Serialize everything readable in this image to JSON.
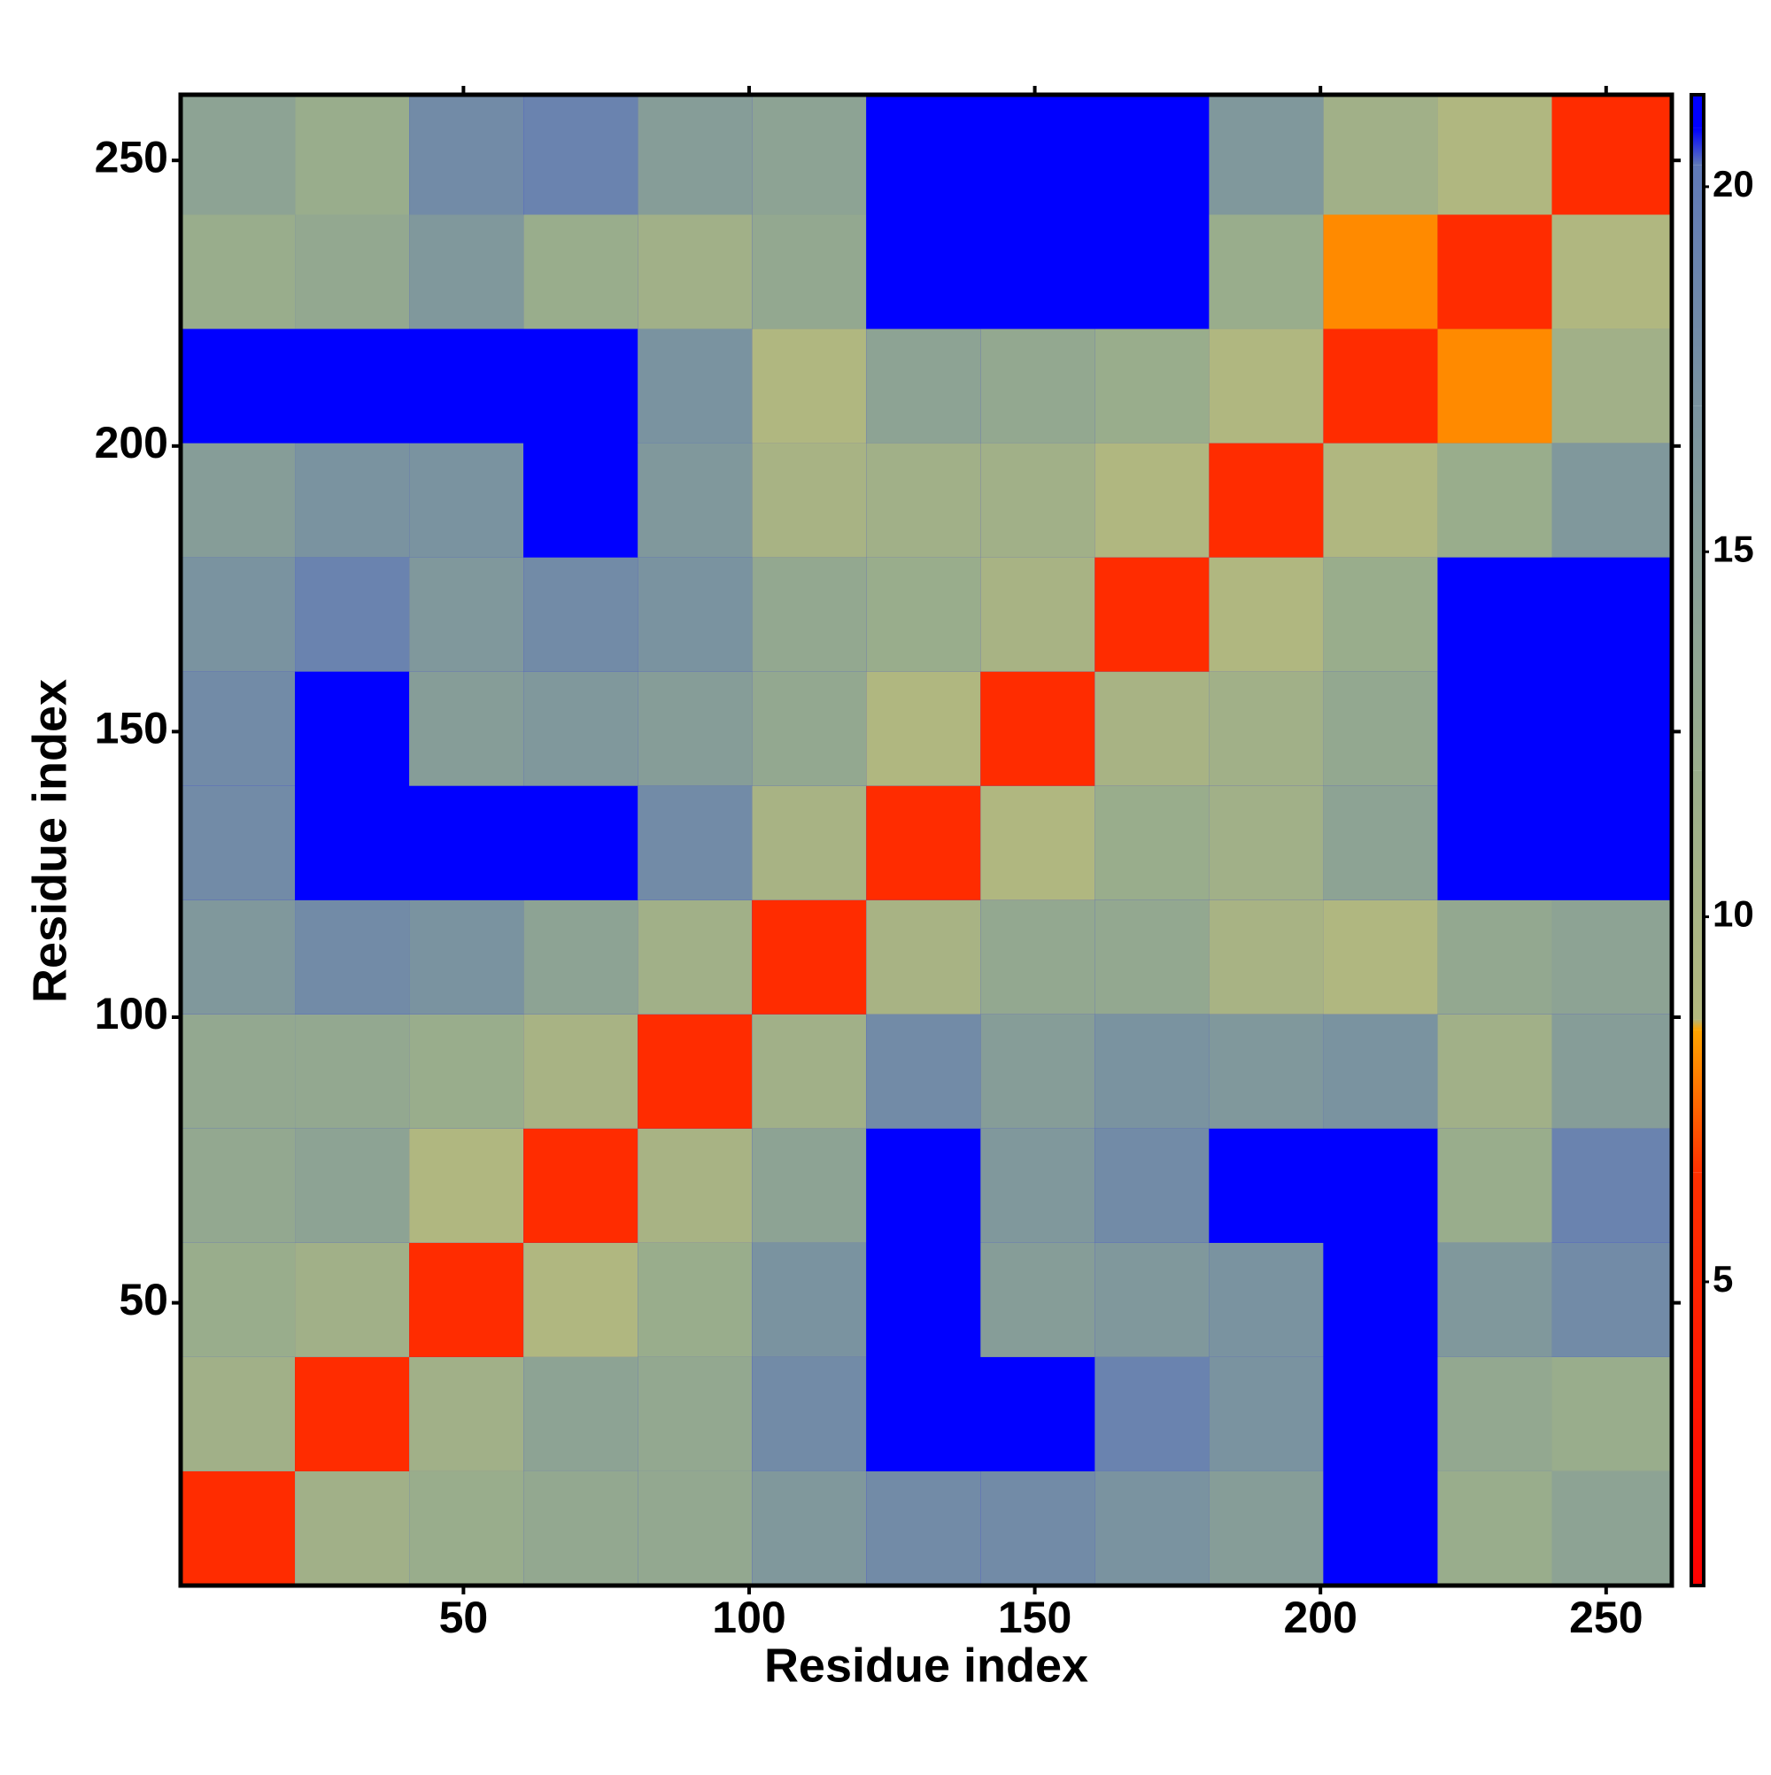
{
  "chart_data": {
    "type": "heatmap",
    "xlabel": "Residue index",
    "ylabel": "Residue index",
    "xbins": [
      0.5,
      20.5,
      40.5,
      60.5,
      80.5,
      100.5,
      120.5,
      140.5,
      160.5,
      180.5,
      200.5,
      220.5,
      240.5,
      261.5
    ],
    "ybins": [
      0.5,
      20.5,
      40.5,
      60.5,
      80.5,
      100.5,
      120.5,
      140.5,
      160.5,
      180.5,
      200.5,
      220.5,
      240.5,
      261.5
    ],
    "values": [
      [
        6,
        11,
        12,
        13,
        13,
        16,
        18,
        18,
        17,
        15,
        21,
        12,
        14
      ],
      [
        11,
        6,
        11,
        14,
        13,
        18,
        21,
        21,
        19,
        17,
        21,
        13,
        12
      ],
      [
        12,
        11,
        6,
        9,
        12,
        17,
        21,
        15,
        16,
        17,
        21,
        16,
        18
      ],
      [
        13,
        14,
        9,
        6,
        10,
        14,
        21,
        16,
        18,
        21,
        21,
        12,
        19
      ],
      [
        13,
        13,
        12,
        10,
        6,
        11,
        18,
        15,
        17,
        16,
        17,
        11,
        15
      ],
      [
        16,
        18,
        17,
        14,
        11,
        6,
        10,
        13,
        13,
        10,
        9,
        13,
        14
      ],
      [
        18,
        21,
        21,
        21,
        18,
        10,
        6,
        9,
        12,
        11,
        14,
        21,
        21
      ],
      [
        18,
        21,
        15,
        16,
        15,
        13,
        9,
        6,
        10,
        11,
        13,
        21,
        21
      ],
      [
        17,
        19,
        16,
        18,
        17,
        13,
        12,
        10,
        6,
        9,
        12,
        21,
        21
      ],
      [
        15,
        17,
        17,
        21,
        16,
        10,
        11,
        11,
        9,
        6,
        9,
        12,
        16
      ],
      [
        21,
        21,
        21,
        21,
        17,
        9,
        14,
        13,
        12,
        9,
        6,
        8,
        11
      ],
      [
        12,
        13,
        16,
        12,
        11,
        13,
        21,
        21,
        21,
        12,
        8,
        6,
        9
      ],
      [
        14,
        12,
        18,
        19,
        15,
        14,
        21,
        21,
        21,
        16,
        11,
        9,
        6
      ]
    ],
    "xlim": [
      0.5,
      261.5
    ],
    "ylim": [
      0.5,
      261.5
    ],
    "xticks": [
      50,
      100,
      150,
      200,
      250
    ],
    "yticks": [
      50,
      100,
      150,
      200,
      250
    ],
    "colorbar": {
      "lim": [
        0.84,
        21.26
      ],
      "ticks": [
        5,
        10,
        15,
        20
      ]
    },
    "colorscale": [
      {
        "value": 0.84,
        "color": "#ff0000"
      },
      {
        "value": 6.5,
        "color": "#ff3000"
      },
      {
        "value": 8.45,
        "color": "#ffa500"
      },
      {
        "value": 8.6,
        "color": "#b3b87e"
      },
      {
        "value": 12,
        "color": "#99ad8c"
      },
      {
        "value": 17,
        "color": "#7a93a0"
      },
      {
        "value": 20.3,
        "color": "#5f79b8"
      },
      {
        "value": 20.8,
        "color": "#0000ff"
      },
      {
        "value": 21.26,
        "color": "#0000ff"
      }
    ]
  }
}
